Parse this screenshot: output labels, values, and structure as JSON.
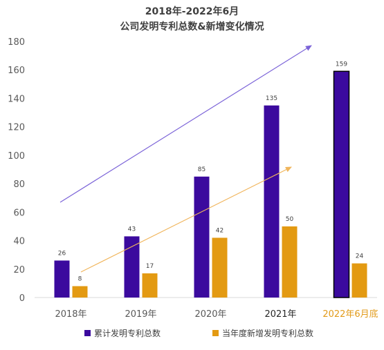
{
  "title_line_1": "2018年-2022年6月",
  "title_line_2": "公司发明专利总数&新增变化情况",
  "chart_data": {
    "type": "bar",
    "title": "2018年-2022年6月 公司发明专利总数&新增变化情况",
    "categories": [
      "2018年",
      "2019年",
      "2020年",
      "2021年",
      "2022年6月底"
    ],
    "category_label_colors": [
      "#595959",
      "#595959",
      "#595959",
      "#262626",
      "#E29A18"
    ],
    "series": [
      {
        "name": "累计发明专利总数",
        "values": [
          26,
          43,
          85,
          135,
          159
        ],
        "color": "#3B0A9E"
      },
      {
        "name": "当年度新增发明专利总数",
        "values": [
          8,
          17,
          42,
          50,
          24
        ],
        "color": "#E39A12"
      }
    ],
    "ylim": [
      0,
      180
    ],
    "yticks": [
      0,
      20,
      40,
      60,
      80,
      100,
      120,
      140,
      160,
      180
    ],
    "grid": false,
    "legend_position": "bottom",
    "highlight_category": "2022年6月底",
    "trend_arrow_colors": [
      "#7B63D8",
      "#F0B55B"
    ]
  }
}
